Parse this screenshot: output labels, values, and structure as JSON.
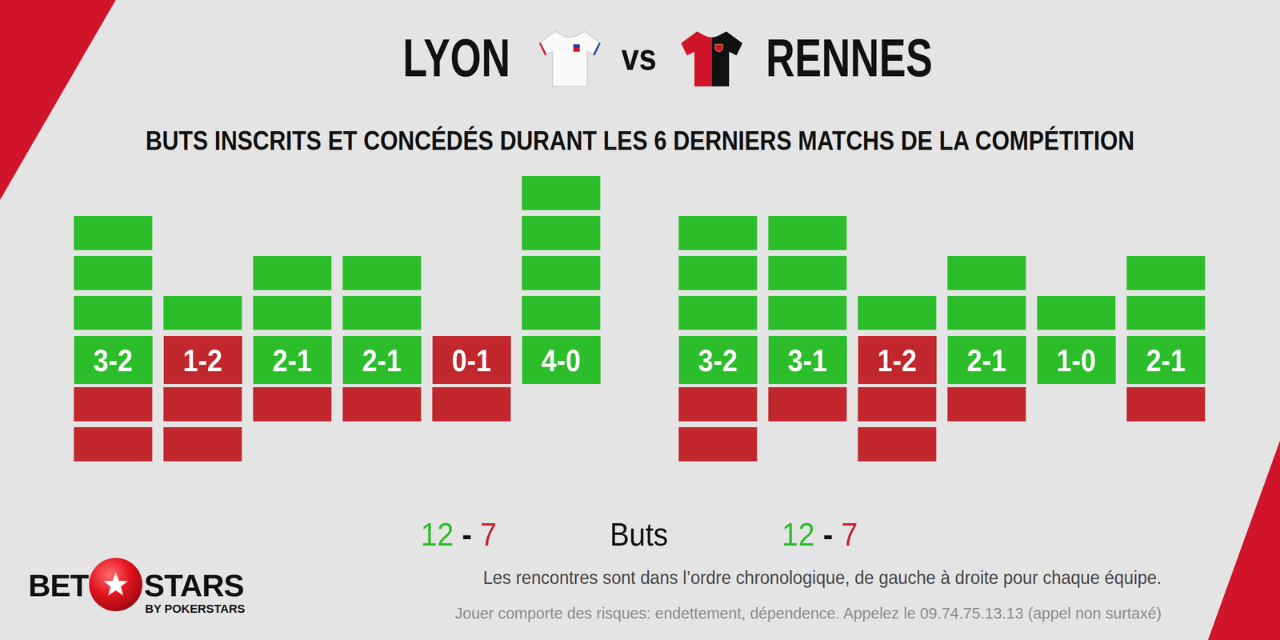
{
  "header": {
    "home": "LYON",
    "separator": "vs",
    "away": "RENNES",
    "subtitle": "BUTS INSCRITS ET CONCÉDÉS DURANT LES 6 DERNIERS MATCHS DE LA COMPÉTITION"
  },
  "chart_data": [
    {
      "type": "bar",
      "categories": [
        "3-2",
        "1-2",
        "2-1",
        "2-1",
        "0-1",
        "4-0"
      ],
      "series": [
        {
          "color": "#2cbe2a",
          "values": [
            3,
            1,
            2,
            2,
            0,
            4
          ]
        },
        {
          "color": "#c1272d",
          "values": [
            2,
            2,
            1,
            1,
            1,
            0
          ],
          "axis": "y2"
        }
      ],
      "ylim": [
        0,
        4
      ],
      "yticks": [
        0,
        1,
        2,
        3,
        4
      ],
      "y2lim": [
        0,
        2
      ],
      "y2ticks": [
        0,
        1,
        2
      ],
      "grid": true,
      "tick_labels": false,
      "totals": {
        "scored": 12,
        "separator": "-",
        "conceded": 7
      }
    },
    {
      "type": "bar",
      "categories": [
        "3-2",
        "3-1",
        "1-2",
        "2-1",
        "1-0",
        "2-1"
      ],
      "series": [
        {
          "color": "#2cbe2a",
          "values": [
            3,
            3,
            1,
            2,
            1,
            2
          ]
        },
        {
          "color": "#c1272d",
          "values": [
            2,
            1,
            2,
            1,
            0,
            1
          ],
          "axis": "y2"
        }
      ],
      "ylim": [
        0,
        4
      ],
      "yticks": [
        0,
        1,
        2,
        3,
        4
      ],
      "y2lim": [
        0,
        2
      ],
      "y2ticks": [
        0,
        1,
        2
      ],
      "grid": true,
      "tick_labels": false,
      "totals": {
        "scored": 12,
        "separator": "-",
        "conceded": 7
      }
    }
  ],
  "totals_label": "Buts",
  "footer": {
    "note": "Les rencontres sont dans l’ordre chronologique, de gauche à droite pour chaque équipe.",
    "warning": "Jouer comporte des risques: endettement, dépendence. Appelez le 09.74.75.13.13 (appel non surtaxé)"
  },
  "brand": {
    "left": "BET",
    "right": "STARS",
    "byline": "BY POKERSTARS"
  }
}
